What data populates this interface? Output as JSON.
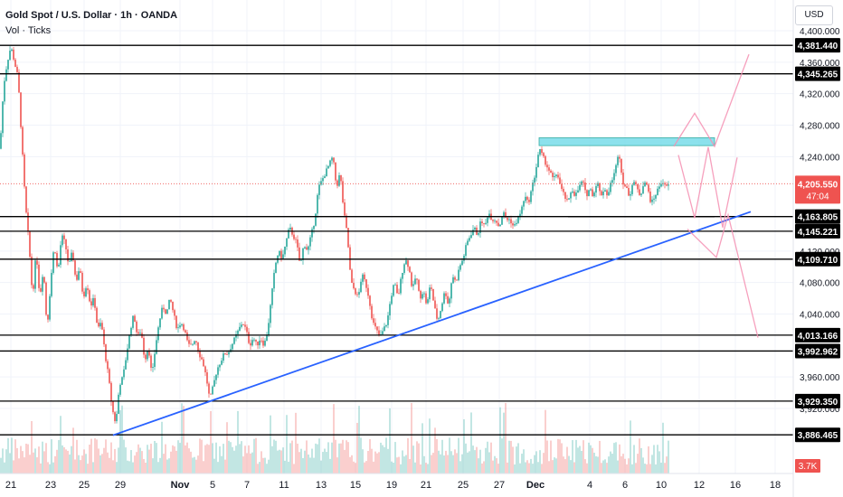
{
  "header": {
    "title": "Gold Spot / U.S. Dollar · 1h · OANDA",
    "subtitle": "Vol · Ticks",
    "currency": "USD"
  },
  "colors": {
    "up": "#26a69a",
    "down": "#ef5350",
    "trendline": "#2962ff",
    "zone_fill": "#80deea",
    "zone_border": "#26a69a",
    "projection": "#f48fb1",
    "level_line": "#000000",
    "price_line": "#ef5350"
  },
  "chart_data": {
    "type": "candlestick",
    "ylim": [
      3860,
      4410
    ],
    "y_ticks": [
      "4,400.000",
      "4,360.000",
      "4,320.000",
      "4,280.000",
      "4,240.000",
      "4,120.000",
      "4,080.000",
      "4,040.000",
      "3,960.000",
      "3,920.000"
    ],
    "x_ticks": [
      "21",
      "23",
      "25",
      "29",
      "Nov",
      "5",
      "7",
      "11",
      "13",
      "15",
      "19",
      "21",
      "25",
      "27",
      "Dec",
      "4",
      "6",
      "10",
      "12",
      "16",
      "18"
    ],
    "levels": [
      {
        "value": 4381.44,
        "label": "4,381.440"
      },
      {
        "value": 4345.265,
        "label": "4,345.265"
      },
      {
        "value": 4163.805,
        "label": "4,163.805"
      },
      {
        "value": 4145.221,
        "label": "4,145.221"
      },
      {
        "value": 4109.71,
        "label": "4,109.710"
      },
      {
        "value": 4013.166,
        "label": "4,013.166"
      },
      {
        "value": 3992.962,
        "label": "3,992.962"
      },
      {
        "value": 3929.35,
        "label": "3,929.350"
      },
      {
        "value": 3886.465,
        "label": "3,886.465"
      }
    ],
    "current_price": {
      "value": 4205.55,
      "label": "4,205.550",
      "countdown": "47:04"
    },
    "volume_label": "3.7K",
    "price_path": [
      [
        0,
        4250
      ],
      [
        4,
        4330
      ],
      [
        8,
        4360
      ],
      [
        12,
        4380
      ],
      [
        16,
        4360
      ],
      [
        20,
        4340
      ],
      [
        24,
        4260
      ],
      [
        28,
        4180
      ],
      [
        32,
        4130
      ],
      [
        36,
        4060
      ],
      [
        40,
        4120
      ],
      [
        44,
        4060
      ],
      [
        48,
        4100
      ],
      [
        52,
        4020
      ],
      [
        56,
        4080
      ],
      [
        60,
        4130
      ],
      [
        64,
        4090
      ],
      [
        68,
        4140
      ],
      [
        72,
        4130
      ],
      [
        76,
        4100
      ],
      [
        80,
        4120
      ],
      [
        84,
        4080
      ],
      [
        88,
        4100
      ],
      [
        92,
        4060
      ],
      [
        96,
        4080
      ],
      [
        100,
        4050
      ],
      [
        104,
        4060
      ],
      [
        108,
        4020
      ],
      [
        112,
        4030
      ],
      [
        116,
        3990
      ],
      [
        120,
        3960
      ],
      [
        124,
        3920
      ],
      [
        128,
        3900
      ],
      [
        132,
        3950
      ],
      [
        136,
        3960
      ],
      [
        140,
        3990
      ],
      [
        144,
        4020
      ],
      [
        148,
        4040
      ],
      [
        152,
        4010
      ],
      [
        156,
        4020
      ],
      [
        160,
        3980
      ],
      [
        164,
        4000
      ],
      [
        168,
        3960
      ],
      [
        172,
        4000
      ],
      [
        176,
        4030
      ],
      [
        180,
        4050
      ],
      [
        184,
        4040
      ],
      [
        188,
        4060
      ],
      [
        192,
        4040
      ],
      [
        196,
        4020
      ],
      [
        200,
        4030
      ],
      [
        204,
        4020
      ],
      [
        208,
        4000
      ],
      [
        212,
        4000
      ],
      [
        216,
        4010
      ],
      [
        220,
        3990
      ],
      [
        224,
        3980
      ],
      [
        228,
        3960
      ],
      [
        232,
        3930
      ],
      [
        236,
        3950
      ],
      [
        240,
        3970
      ],
      [
        244,
        3980
      ],
      [
        248,
        3990
      ],
      [
        252,
        3990
      ],
      [
        256,
        4000
      ],
      [
        260,
        4010
      ],
      [
        264,
        4020
      ],
      [
        268,
        4030
      ],
      [
        272,
        4020
      ],
      [
        276,
        4000
      ],
      [
        280,
        4010
      ],
      [
        284,
        4000
      ],
      [
        288,
        4010
      ],
      [
        292,
        4000
      ],
      [
        296,
        4020
      ],
      [
        300,
        4060
      ],
      [
        304,
        4100
      ],
      [
        308,
        4120
      ],
      [
        312,
        4110
      ],
      [
        316,
        4130
      ],
      [
        320,
        4150
      ],
      [
        324,
        4140
      ],
      [
        328,
        4130
      ],
      [
        332,
        4100
      ],
      [
        336,
        4130
      ],
      [
        340,
        4120
      ],
      [
        344,
        4140
      ],
      [
        348,
        4160
      ],
      [
        352,
        4200
      ],
      [
        356,
        4210
      ],
      [
        360,
        4220
      ],
      [
        364,
        4230
      ],
      [
        368,
        4240
      ],
      [
        372,
        4200
      ],
      [
        376,
        4220
      ],
      [
        380,
        4170
      ],
      [
        384,
        4140
      ],
      [
        388,
        4080
      ],
      [
        392,
        4070
      ],
      [
        396,
        4060
      ],
      [
        400,
        4090
      ],
      [
        404,
        4080
      ],
      [
        408,
        4060
      ],
      [
        412,
        4030
      ],
      [
        416,
        4020
      ],
      [
        420,
        4010
      ],
      [
        424,
        4020
      ],
      [
        428,
        4030
      ],
      [
        432,
        4060
      ],
      [
        436,
        4080
      ],
      [
        440,
        4060
      ],
      [
        444,
        4090
      ],
      [
        448,
        4110
      ],
      [
        452,
        4100
      ],
      [
        456,
        4070
      ],
      [
        460,
        4090
      ],
      [
        464,
        4060
      ],
      [
        468,
        4070
      ],
      [
        472,
        4050
      ],
      [
        476,
        4080
      ],
      [
        480,
        4050
      ],
      [
        484,
        4030
      ],
      [
        488,
        4050
      ],
      [
        492,
        4070
      ],
      [
        496,
        4050
      ],
      [
        500,
        4090
      ],
      [
        504,
        4080
      ],
      [
        508,
        4100
      ],
      [
        512,
        4110
      ],
      [
        516,
        4130
      ],
      [
        520,
        4140
      ],
      [
        524,
        4150
      ],
      [
        528,
        4140
      ],
      [
        532,
        4160
      ],
      [
        536,
        4150
      ],
      [
        540,
        4170
      ],
      [
        544,
        4160
      ],
      [
        548,
        4160
      ],
      [
        552,
        4150
      ],
      [
        556,
        4170
      ],
      [
        560,
        4160
      ],
      [
        564,
        4160
      ],
      [
        568,
        4150
      ],
      [
        572,
        4160
      ],
      [
        576,
        4170
      ],
      [
        580,
        4190
      ],
      [
        584,
        4180
      ],
      [
        588,
        4200
      ],
      [
        592,
        4220
      ],
      [
        596,
        4250
      ],
      [
        600,
        4240
      ],
      [
        604,
        4230
      ],
      [
        608,
        4220
      ],
      [
        612,
        4210
      ],
      [
        616,
        4220
      ],
      [
        620,
        4200
      ],
      [
        624,
        4190
      ],
      [
        628,
        4180
      ],
      [
        632,
        4200
      ],
      [
        636,
        4190
      ],
      [
        640,
        4200
      ],
      [
        644,
        4210
      ],
      [
        648,
        4190
      ],
      [
        652,
        4200
      ],
      [
        656,
        4190
      ],
      [
        660,
        4210
      ],
      [
        664,
        4190
      ],
      [
        668,
        4200
      ],
      [
        672,
        4190
      ],
      [
        676,
        4210
      ],
      [
        680,
        4220
      ],
      [
        684,
        4250
      ],
      [
        688,
        4210
      ],
      [
        692,
        4200
      ],
      [
        696,
        4190
      ],
      [
        700,
        4210
      ],
      [
        704,
        4200
      ],
      [
        708,
        4190
      ],
      [
        712,
        4210
      ],
      [
        716,
        4200
      ],
      [
        720,
        4180
      ],
      [
        724,
        4190
      ],
      [
        728,
        4200
      ],
      [
        732,
        4210
      ],
      [
        736,
        4200
      ],
      [
        740,
        4205.55
      ]
    ],
    "trendline": [
      [
        125,
        3886
      ],
      [
        830,
        4170
      ]
    ],
    "zone": {
      "x0": 596,
      "x1": 790,
      "y0": 4254,
      "y1": 4264
    },
    "support_segment": {
      "x0": 628,
      "x1": 790,
      "y": 4163.805
    },
    "projections": [
      [
        [
          745,
          4253
        ],
        [
          768,
          4295
        ],
        [
          790,
          4253
        ],
        [
          828,
          4370
        ]
      ],
      [
        [
          750,
          4242
        ],
        [
          768,
          4162
        ],
        [
          783,
          4252
        ],
        [
          799,
          4150
        ],
        [
          815,
          4239
        ]
      ],
      [
        [
          760,
          4148
        ],
        [
          792,
          4112
        ],
        [
          805,
          4166
        ],
        [
          838,
          4010
        ]
      ]
    ]
  }
}
